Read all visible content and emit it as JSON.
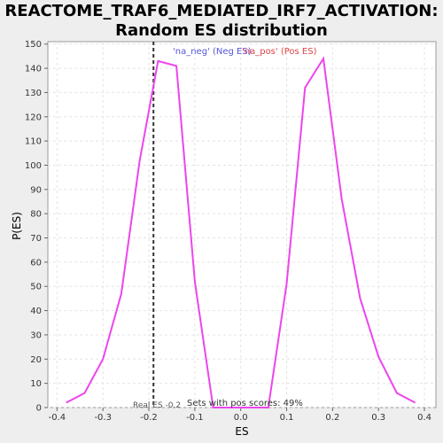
{
  "chart_data": {
    "type": "line",
    "title_lines": [
      "REACTOME_TRAF6_MEDIATED_IRF7_ACTIVATION:",
      "Random ES distribution"
    ],
    "xlabel": "ES",
    "ylabel": "P(ES)",
    "xlim": [
      -0.42,
      0.425
    ],
    "ylim": [
      0,
      151
    ],
    "xticks": [
      -0.4,
      -0.3,
      -0.2,
      -0.1,
      0.0,
      0.1,
      0.2,
      0.3,
      0.4
    ],
    "xtick_labels": [
      "-0.4",
      "-0.3",
      "-0.2",
      "-0.1",
      "0.0",
      "0.1",
      "0.2",
      "0.3",
      "0.4"
    ],
    "yticks": [
      0,
      10,
      20,
      30,
      40,
      50,
      60,
      70,
      80,
      90,
      100,
      110,
      120,
      130,
      140,
      150
    ],
    "grid": true,
    "series": [
      {
        "color": "#ee44ee",
        "x": [
          -0.38,
          -0.34,
          -0.3,
          -0.26,
          -0.22,
          -0.18,
          -0.14,
          -0.1,
          -0.06,
          -0.02,
          0.02,
          0.06,
          0.1,
          0.14,
          0.18,
          0.22,
          0.26,
          0.3,
          0.34,
          0.38
        ],
        "y": [
          2,
          6,
          20,
          47,
          102,
          143,
          141,
          52,
          0,
          0,
          0,
          0,
          51,
          132,
          144,
          86,
          45,
          21,
          6,
          2
        ]
      }
    ],
    "real_es": {
      "x": -0.19,
      "label": "Real ES -0.2"
    },
    "legend": [
      {
        "text": "'na_neg' (Neg ES)",
        "color": "#5555dd"
      },
      {
        "text": "'na_pos' (Pos ES)",
        "color": "#dd4444"
      }
    ],
    "annotation": "Sets with pos scores: 49%"
  }
}
